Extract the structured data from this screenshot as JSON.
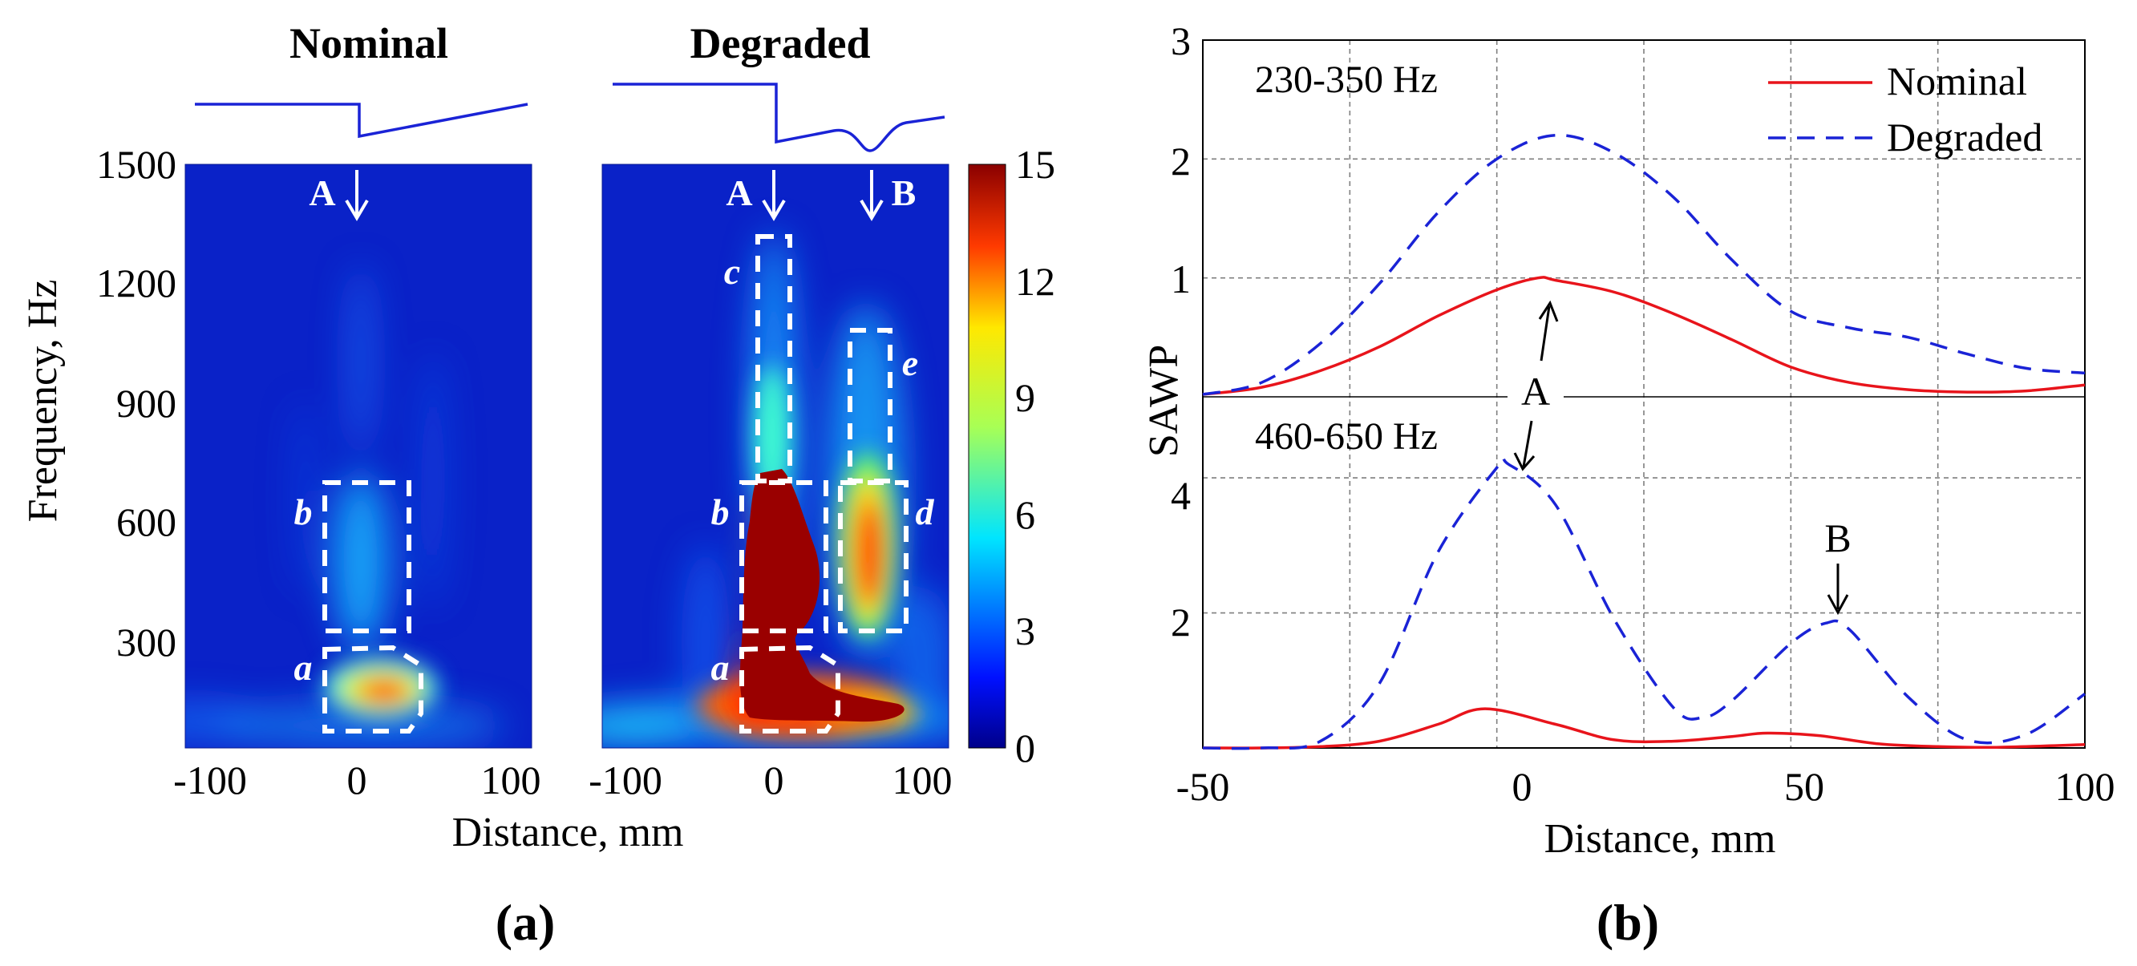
{
  "panel_a": {
    "label": "(a)",
    "nominal_title": "Nominal",
    "degraded_title": "Degraded",
    "ylabel": "Frequency, Hz",
    "xlabel": "Distance, mm",
    "yticks": [
      "1500",
      "1200",
      "900",
      "600",
      "300"
    ],
    "xticks_nominal": [
      "-100",
      "0",
      "100"
    ],
    "xticks_degraded": [
      "-100",
      "0",
      "100"
    ],
    "colorbar_ticks": [
      "15",
      "12",
      "9",
      "6",
      "3",
      "0"
    ],
    "marker_A": "A",
    "marker_B": "B",
    "region_labels_nominal": [
      "a",
      "b"
    ],
    "region_labels_degraded": [
      "a",
      "b",
      "c",
      "d",
      "e"
    ]
  },
  "panel_b": {
    "label": "(b)",
    "ylabel": "SAWP",
    "xlabel": "Distance, mm",
    "top_band": "230-350 Hz",
    "bottom_band": "460-650 Hz",
    "top_yticks": [
      "3",
      "2",
      "1"
    ],
    "bottom_yticks": [
      "4",
      "2"
    ],
    "xticks": [
      "-50",
      "0",
      "50",
      "100"
    ],
    "annot_A": "A",
    "annot_B": "B"
  },
  "colors": {
    "nominal": "#e8141b",
    "degraded": "#1a23d6",
    "map_bg": "#0a22c8",
    "profile_line": "#1a23d6"
  },
  "chart_data": [
    {
      "type": "heatmap",
      "title": "Nominal",
      "xlabel": "Distance, mm",
      "ylabel": "Frequency, Hz",
      "xlim": [
        -100,
        100
      ],
      "ylim": [
        150,
        1500
      ],
      "clim": [
        0,
        15
      ],
      "regions": [
        {
          "name": "a",
          "x": [
            -20,
            35
          ],
          "y": [
            180,
            380
          ]
        },
        {
          "name": "b",
          "x": [
            -20,
            30
          ],
          "y": [
            420,
            760
          ]
        }
      ],
      "peaks": [
        {
          "x": 5,
          "y": 280,
          "value": 13
        },
        {
          "x": 0,
          "y": 580,
          "value": 4
        }
      ]
    },
    {
      "type": "heatmap",
      "title": "Degraded",
      "xlabel": "Distance, mm",
      "ylabel": "Frequency, Hz",
      "xlim": [
        -100,
        100
      ],
      "ylim": [
        150,
        1500
      ],
      "clim": [
        0,
        15
      ],
      "regions": [
        {
          "name": "a",
          "x": [
            -20,
            35
          ],
          "y": [
            180,
            380
          ]
        },
        {
          "name": "b",
          "x": [
            -20,
            30
          ],
          "y": [
            420,
            760
          ]
        },
        {
          "name": "c",
          "x": [
            -10,
            10
          ],
          "y": [
            760,
            1330
          ]
        },
        {
          "name": "d",
          "x": [
            40,
            80
          ],
          "y": [
            420,
            760
          ]
        },
        {
          "name": "e",
          "x": [
            45,
            70
          ],
          "y": [
            760,
            1100
          ]
        }
      ],
      "peaks": [
        {
          "x": 0,
          "y": 300,
          "value": 15
        },
        {
          "x": 0,
          "y": 600,
          "value": 15
        },
        {
          "x": 60,
          "y": 600,
          "value": 11
        }
      ]
    },
    {
      "type": "line",
      "title": "230-350 Hz",
      "xlabel": "Distance, mm",
      "ylabel": "SAWP",
      "xlim": [
        -50,
        100
      ],
      "ylim": [
        0,
        3
      ],
      "series": [
        {
          "name": "Nominal",
          "x": [
            -50,
            -40,
            -30,
            -20,
            -10,
            0,
            7,
            10,
            20,
            30,
            40,
            50,
            60,
            70,
            80,
            90,
            100
          ],
          "values": [
            0.02,
            0.08,
            0.22,
            0.42,
            0.68,
            0.9,
            1.0,
            0.98,
            0.88,
            0.7,
            0.48,
            0.25,
            0.12,
            0.06,
            0.04,
            0.05,
            0.1
          ]
        },
        {
          "name": "Degraded",
          "x": [
            -50,
            -40,
            -30,
            -20,
            -10,
            0,
            10,
            20,
            30,
            40,
            50,
            60,
            70,
            80,
            90,
            100
          ],
          "values": [
            0.02,
            0.12,
            0.45,
            0.95,
            1.55,
            2.0,
            2.2,
            2.05,
            1.68,
            1.15,
            0.72,
            0.58,
            0.5,
            0.36,
            0.24,
            0.2
          ]
        }
      ]
    },
    {
      "type": "line",
      "title": "460-650 Hz",
      "xlabel": "Distance, mm",
      "ylabel": "SAWP",
      "xlim": [
        -50,
        100
      ],
      "ylim": [
        0,
        5.2
      ],
      "series": [
        {
          "name": "Nominal",
          "x": [
            -50,
            -40,
            -30,
            -20,
            -10,
            -2,
            10,
            20,
            30,
            40,
            46,
            55,
            65,
            75,
            85,
            100
          ],
          "values": [
            0,
            0,
            0.02,
            0.1,
            0.35,
            0.58,
            0.35,
            0.12,
            0.1,
            0.17,
            0.22,
            0.18,
            0.06,
            0.02,
            0.01,
            0.05
          ]
        },
        {
          "name": "Degraded",
          "x": [
            -50,
            -40,
            -30,
            -20,
            -10,
            0,
            2,
            10,
            20,
            30,
            35,
            40,
            50,
            56,
            60,
            70,
            80,
            90,
            100
          ],
          "values": [
            0,
            0,
            0.1,
            0.95,
            2.9,
            4.15,
            4.2,
            3.6,
            1.9,
            0.6,
            0.45,
            0.7,
            1.55,
            1.85,
            1.75,
            0.75,
            0.12,
            0.2,
            0.8
          ]
        }
      ]
    }
  ]
}
